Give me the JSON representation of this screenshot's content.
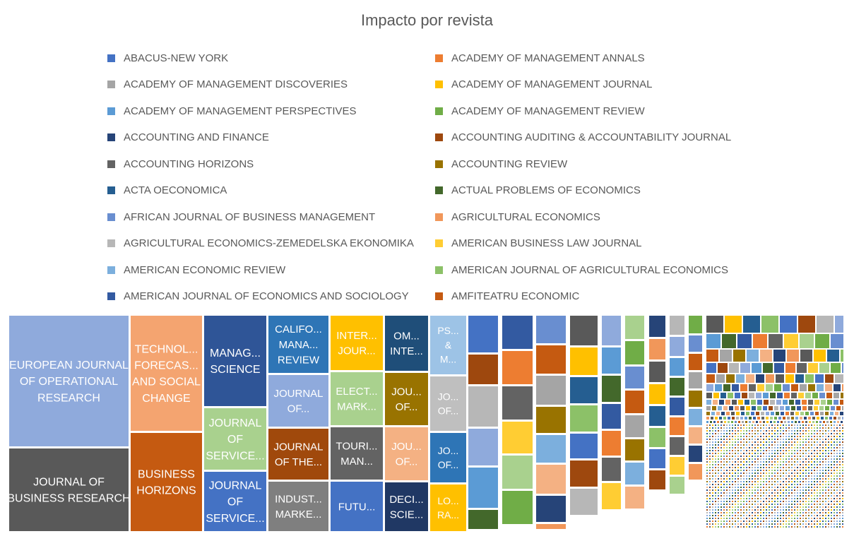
{
  "chart_data": {
    "type": "treemap",
    "title": "Impacto por revista",
    "legend": [
      {
        "label": "ABACUS-NEW YORK",
        "color": "#4472c4"
      },
      {
        "label": "ACADEMY OF MANAGEMENT ANNALS",
        "color": "#ed7d31"
      },
      {
        "label": "ACADEMY OF MANAGEMENT DISCOVERIES",
        "color": "#a5a5a5"
      },
      {
        "label": "ACADEMY OF MANAGEMENT JOURNAL",
        "color": "#ffc000"
      },
      {
        "label": "ACADEMY OF MANAGEMENT PERSPECTIVES",
        "color": "#5b9bd5"
      },
      {
        "label": "ACADEMY OF MANAGEMENT REVIEW",
        "color": "#70ad47"
      },
      {
        "label": "ACCOUNTING AND FINANCE",
        "color": "#264478"
      },
      {
        "label": "ACCOUNTING AUDITING & ACCOUNTABILITY JOURNAL",
        "color": "#9e480e"
      },
      {
        "label": "ACCOUNTING HORIZONS",
        "color": "#636363"
      },
      {
        "label": "ACCOUNTING REVIEW",
        "color": "#997300"
      },
      {
        "label": "ACTA OECONOMICA",
        "color": "#255e91"
      },
      {
        "label": "ACTUAL PROBLEMS OF ECONOMICS",
        "color": "#43682b"
      },
      {
        "label": "AFRICAN JOURNAL OF BUSINESS MANAGEMENT",
        "color": "#698ed0"
      },
      {
        "label": "AGRICULTURAL ECONOMICS",
        "color": "#f1975a"
      },
      {
        "label": "AGRICULTURAL ECONOMICS-ZEMEDELSKA EKONOMIKA",
        "color": "#b7b7b7"
      },
      {
        "label": "AMERICAN BUSINESS LAW JOURNAL",
        "color": "#ffcd33"
      },
      {
        "label": "AMERICAN ECONOMIC REVIEW",
        "color": "#7cafdd"
      },
      {
        "label": "AMERICAN JOURNAL OF AGRICULTURAL ECONOMICS",
        "color": "#8cc168"
      },
      {
        "label": "AMERICAN JOURNAL OF ECONOMICS AND SOCIOLOGY",
        "color": "#335aa1"
      },
      {
        "label": "AMFITEATRU ECONOMIC",
        "color": "#c55a11"
      }
    ],
    "tiles": [
      {
        "label": "EUROPEAN JOURNAL OF OPERATIONAL RESEARCH",
        "color": "#8faadc",
        "value": 100
      },
      {
        "label": "JOURNAL OF BUSINESS RESEARCH",
        "color": "#595959",
        "value": 63
      },
      {
        "label": "TECHNOL... FORECAS... AND SOCIAL CHANGE",
        "color": "#f4a470",
        "value": 58
      },
      {
        "label": "BUSINESS HORIZONS",
        "color": "#c55a11",
        "value": 44
      },
      {
        "label": "MANAG... SCIENCE",
        "color": "#2f5597",
        "value": 35
      },
      {
        "label": "JOURNAL OF SERVICE...",
        "color": "#a9d18e",
        "value": 25
      },
      {
        "label": "JOURNAL OF SERVICE...",
        "color": "#4472c4",
        "value": 22
      },
      {
        "label": "CALIFO... MANA... REVIEW",
        "color": "#2e75b6",
        "value": 20
      },
      {
        "label": "JOURNAL OF...",
        "color": "#8faadc",
        "value": 18
      },
      {
        "label": "JOURNAL OF THE...",
        "color": "#a0490c",
        "value": 18
      },
      {
        "label": "INDUST... MARKE...",
        "color": "#7f7f7f",
        "value": 17
      },
      {
        "label": "INTER... JOUR...",
        "color": "#ffc000",
        "value": 15
      },
      {
        "label": "ELECT... MARK...",
        "color": "#a9d18e",
        "value": 15
      },
      {
        "label": "TOURI... MAN...",
        "color": "#636363",
        "value": 14
      },
      {
        "label": "FUTU...",
        "color": "#4472c4",
        "value": 13
      },
      {
        "label": "OM... INTE...",
        "color": "#1f4e79",
        "value": 14
      },
      {
        "label": "JOU... OF...",
        "color": "#997300",
        "value": 13
      },
      {
        "label": "JOU... OF...",
        "color": "#f4b183",
        "value": 12
      },
      {
        "label": "DECI... SCIE...",
        "color": "#203864",
        "value": 12
      },
      {
        "label": "PS... & M...",
        "color": "#9dc3e6",
        "value": 10
      },
      {
        "label": "JO... OF...",
        "color": "#bfbfbf",
        "value": 9
      },
      {
        "label": "JO... OF...",
        "color": "#2e75b6",
        "value": 9
      },
      {
        "label": "LO... RA...",
        "color": "#ffc000",
        "value": 8
      }
    ]
  }
}
